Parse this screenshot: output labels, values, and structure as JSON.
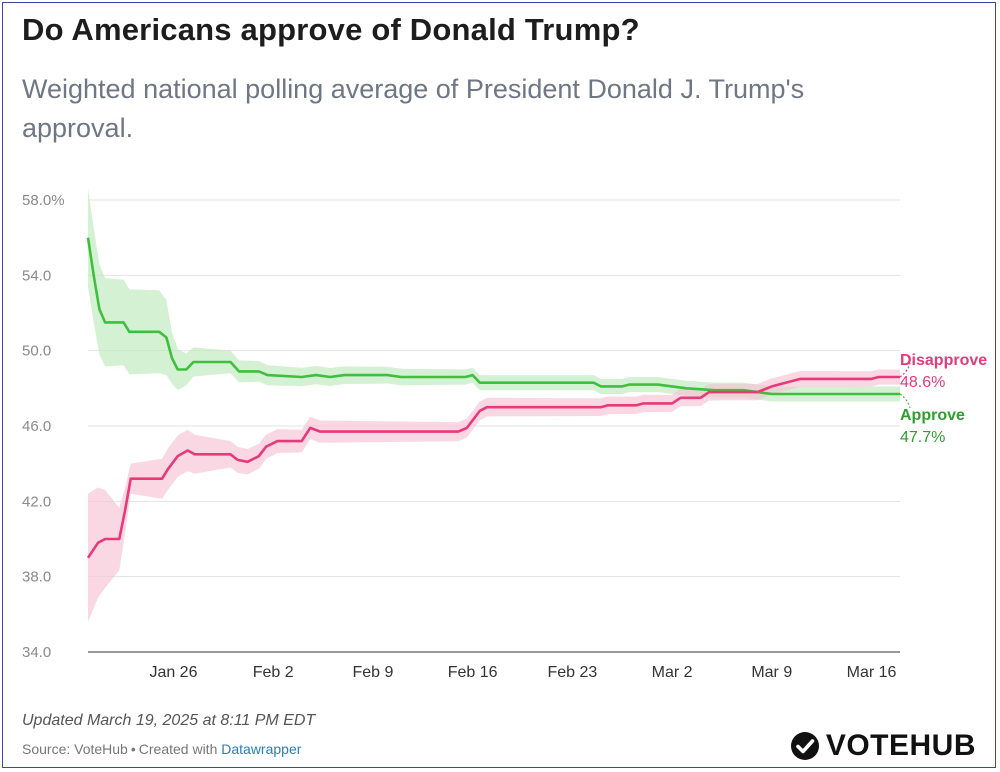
{
  "header": {
    "title": "Do Americans approve of Donald Trump?",
    "subtitle": "Weighted national polling average of President Donald J. Trump's approval."
  },
  "chart_data": {
    "type": "line",
    "title": "Do Americans approve of Donald Trump?",
    "xlabel": "",
    "ylabel": "",
    "ylim": [
      34,
      58
    ],
    "yticks": [
      34,
      38,
      42,
      46,
      50,
      54,
      58
    ],
    "ytick_labels": [
      "34.0",
      "38.0",
      "42.0",
      "46.0",
      "50.0",
      "54.0",
      "58.0%"
    ],
    "xlim": [
      0,
      57
    ],
    "xtick_labels": [
      "Jan 26",
      "Feb 2",
      "Feb 9",
      "Feb 16",
      "Feb 23",
      "Mar 2",
      "Mar 9",
      "Mar 16"
    ],
    "xtick_days": [
      6,
      13,
      20,
      27,
      34,
      41,
      48,
      55
    ],
    "grid": true,
    "series": [
      {
        "name": "Approve",
        "color": "#3fbf3f",
        "band_color": "#bfeabb",
        "final_label": "47.7%",
        "points": [
          [
            0,
            56.0
          ],
          [
            0.4,
            54.0
          ],
          [
            0.8,
            52.2
          ],
          [
            1.2,
            51.5
          ],
          [
            2.5,
            51.5
          ],
          [
            2.9,
            51.0
          ],
          [
            5.0,
            51.0
          ],
          [
            5.5,
            50.7
          ],
          [
            5.9,
            49.6
          ],
          [
            6.3,
            49.0
          ],
          [
            6.9,
            49.0
          ],
          [
            7.4,
            49.4
          ],
          [
            10.0,
            49.4
          ],
          [
            10.6,
            48.9
          ],
          [
            12.0,
            48.9
          ],
          [
            12.6,
            48.7
          ],
          [
            15.0,
            48.6
          ],
          [
            16.0,
            48.7
          ],
          [
            17.0,
            48.6
          ],
          [
            18.0,
            48.7
          ],
          [
            21.0,
            48.7
          ],
          [
            22.0,
            48.6
          ],
          [
            26.5,
            48.6
          ],
          [
            27.0,
            48.7
          ],
          [
            27.5,
            48.3
          ],
          [
            35.5,
            48.3
          ],
          [
            36.0,
            48.1
          ],
          [
            37.5,
            48.1
          ],
          [
            38.0,
            48.2
          ],
          [
            40.0,
            48.2
          ],
          [
            41.0,
            48.1
          ],
          [
            42.0,
            48.0
          ],
          [
            44.0,
            47.9
          ],
          [
            46.0,
            47.9
          ],
          [
            47.0,
            47.8
          ],
          [
            48.0,
            47.7
          ],
          [
            57.0,
            47.7
          ]
        ],
        "band_width": [
          [
            0,
            2.6
          ],
          [
            0.8,
            2.4
          ],
          [
            1.5,
            2.3
          ],
          [
            5.0,
            2.2
          ],
          [
            5.5,
            2.0
          ],
          [
            6.0,
            1.2
          ],
          [
            7.0,
            0.8
          ],
          [
            10.0,
            0.6
          ],
          [
            14.0,
            0.5
          ],
          [
            27.0,
            0.4
          ],
          [
            57.0,
            0.4
          ]
        ]
      },
      {
        "name": "Disapprove",
        "color": "#e8397a",
        "band_color": "#f6c3d6",
        "final_label": "48.6%",
        "points": [
          [
            0,
            39.0
          ],
          [
            0.7,
            39.8
          ],
          [
            1.2,
            40.0
          ],
          [
            2.2,
            40.0
          ],
          [
            2.6,
            41.5
          ],
          [
            3.0,
            43.2
          ],
          [
            5.2,
            43.2
          ],
          [
            5.6,
            43.7
          ],
          [
            6.3,
            44.4
          ],
          [
            7.0,
            44.7
          ],
          [
            7.5,
            44.5
          ],
          [
            10.0,
            44.5
          ],
          [
            10.5,
            44.2
          ],
          [
            11.2,
            44.1
          ],
          [
            12.0,
            44.4
          ],
          [
            12.5,
            44.9
          ],
          [
            13.3,
            45.2
          ],
          [
            15.0,
            45.2
          ],
          [
            15.6,
            45.9
          ],
          [
            16.3,
            45.7
          ],
          [
            26.0,
            45.7
          ],
          [
            26.6,
            45.9
          ],
          [
            27.5,
            46.8
          ],
          [
            28.0,
            47.0
          ],
          [
            36.0,
            47.0
          ],
          [
            36.5,
            47.1
          ],
          [
            38.5,
            47.1
          ],
          [
            39.0,
            47.2
          ],
          [
            41.0,
            47.2
          ],
          [
            41.6,
            47.5
          ],
          [
            43.0,
            47.5
          ],
          [
            43.6,
            47.8
          ],
          [
            47.0,
            47.8
          ],
          [
            48.0,
            48.1
          ],
          [
            50.0,
            48.5
          ],
          [
            55.0,
            48.5
          ],
          [
            55.5,
            48.6
          ],
          [
            57.0,
            48.6
          ]
        ],
        "band_width": [
          [
            0,
            3.4
          ],
          [
            1.5,
            2.4
          ],
          [
            3.0,
            0.8
          ],
          [
            5.5,
            1.1
          ],
          [
            7.0,
            1.1
          ],
          [
            10.0,
            0.7
          ],
          [
            15.0,
            0.6
          ],
          [
            27.0,
            0.5
          ],
          [
            57.0,
            0.4
          ]
        ]
      }
    ],
    "annotations": [
      {
        "series": "Disapprove",
        "label": "Disapprove",
        "value": "48.6%"
      },
      {
        "series": "Approve",
        "label": "Approve",
        "value": "47.7%"
      }
    ]
  },
  "footer": {
    "updated": "Updated March 19, 2025 at 8:11 PM EDT",
    "source_prefix": "Source: VoteHub",
    "separator": "•",
    "created_with": "Created with",
    "tool_link": "Datawrapper"
  },
  "brand": {
    "logo_text": "VOTEHUB",
    "logo_icon": "check-circle-icon"
  }
}
